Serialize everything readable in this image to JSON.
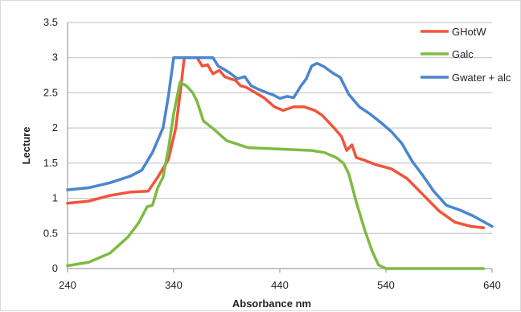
{
  "chart_data": {
    "type": "line",
    "title": "",
    "xlabel": "Absorbance nm",
    "ylabel": "Lecture",
    "xlim": [
      240,
      640
    ],
    "ylim": [
      0,
      3.5
    ],
    "x_ticks": [
      240,
      340,
      440,
      540,
      640
    ],
    "y_ticks": [
      0,
      0.5,
      1,
      1.5,
      2,
      2.5,
      3,
      3.5
    ],
    "y_tick_labels": [
      "0",
      "0.5",
      "1",
      "1.5",
      "2",
      "2.5",
      "3",
      "3.5"
    ],
    "grid": "horizontal",
    "legend_position": "top-right",
    "series": [
      {
        "name": "GHotW",
        "color": "#f0553a",
        "points": [
          [
            240,
            0.93
          ],
          [
            260,
            0.96
          ],
          [
            280,
            1.04
          ],
          [
            300,
            1.09
          ],
          [
            316,
            1.1
          ],
          [
            325,
            1.3
          ],
          [
            335,
            1.55
          ],
          [
            342,
            2.0
          ],
          [
            347,
            2.6
          ],
          [
            350,
            3.0
          ],
          [
            355,
            3.0
          ],
          [
            362,
            3.0
          ],
          [
            367,
            2.88
          ],
          [
            372,
            2.9
          ],
          [
            377,
            2.77
          ],
          [
            383,
            2.82
          ],
          [
            388,
            2.73
          ],
          [
            393,
            2.7
          ],
          [
            398,
            2.68
          ],
          [
            403,
            2.6
          ],
          [
            408,
            2.58
          ],
          [
            415,
            2.52
          ],
          [
            425,
            2.43
          ],
          [
            435,
            2.3
          ],
          [
            443,
            2.25
          ],
          [
            453,
            2.3
          ],
          [
            463,
            2.3
          ],
          [
            473,
            2.25
          ],
          [
            480,
            2.18
          ],
          [
            490,
            2.02
          ],
          [
            498,
            1.88
          ],
          [
            503,
            1.68
          ],
          [
            508,
            1.76
          ],
          [
            512,
            1.58
          ],
          [
            520,
            1.54
          ],
          [
            530,
            1.48
          ],
          [
            545,
            1.42
          ],
          [
            560,
            1.28
          ],
          [
            575,
            1.05
          ],
          [
            590,
            0.82
          ],
          [
            605,
            0.66
          ],
          [
            620,
            0.6
          ],
          [
            632,
            0.58
          ]
        ]
      },
      {
        "name": "Galc",
        "color": "#7dbb42",
        "points": [
          [
            240,
            0.04
          ],
          [
            260,
            0.09
          ],
          [
            280,
            0.22
          ],
          [
            297,
            0.45
          ],
          [
            307,
            0.65
          ],
          [
            315,
            0.88
          ],
          [
            320,
            0.9
          ],
          [
            325,
            1.15
          ],
          [
            330,
            1.3
          ],
          [
            335,
            1.7
          ],
          [
            340,
            2.2
          ],
          [
            346,
            2.65
          ],
          [
            352,
            2.6
          ],
          [
            358,
            2.5
          ],
          [
            362,
            2.38
          ],
          [
            368,
            2.1
          ],
          [
            378,
            1.98
          ],
          [
            390,
            1.82
          ],
          [
            410,
            1.72
          ],
          [
            440,
            1.7
          ],
          [
            470,
            1.68
          ],
          [
            482,
            1.65
          ],
          [
            493,
            1.58
          ],
          [
            500,
            1.5
          ],
          [
            505,
            1.35
          ],
          [
            512,
            0.95
          ],
          [
            520,
            0.55
          ],
          [
            527,
            0.25
          ],
          [
            533,
            0.05
          ],
          [
            540,
            0.0
          ],
          [
            600,
            0.0
          ],
          [
            632,
            0.0
          ]
        ]
      },
      {
        "name": "Gwater + alc",
        "color": "#4a86cf",
        "points": [
          [
            240,
            1.12
          ],
          [
            260,
            1.15
          ],
          [
            280,
            1.22
          ],
          [
            300,
            1.32
          ],
          [
            310,
            1.4
          ],
          [
            320,
            1.65
          ],
          [
            330,
            2.0
          ],
          [
            335,
            2.45
          ],
          [
            340,
            3.0
          ],
          [
            350,
            3.0
          ],
          [
            360,
            3.0
          ],
          [
            372,
            3.0
          ],
          [
            377,
            3.0
          ],
          [
            382,
            2.88
          ],
          [
            388,
            2.83
          ],
          [
            393,
            2.78
          ],
          [
            400,
            2.7
          ],
          [
            407,
            2.73
          ],
          [
            413,
            2.6
          ],
          [
            420,
            2.55
          ],
          [
            428,
            2.5
          ],
          [
            434,
            2.47
          ],
          [
            440,
            2.42
          ],
          [
            447,
            2.45
          ],
          [
            453,
            2.43
          ],
          [
            460,
            2.6
          ],
          [
            465,
            2.7
          ],
          [
            470,
            2.88
          ],
          [
            475,
            2.92
          ],
          [
            482,
            2.87
          ],
          [
            490,
            2.78
          ],
          [
            497,
            2.72
          ],
          [
            505,
            2.48
          ],
          [
            515,
            2.3
          ],
          [
            525,
            2.2
          ],
          [
            535,
            2.08
          ],
          [
            545,
            1.95
          ],
          [
            555,
            1.78
          ],
          [
            565,
            1.52
          ],
          [
            575,
            1.32
          ],
          [
            585,
            1.1
          ],
          [
            597,
            0.9
          ],
          [
            610,
            0.83
          ],
          [
            622,
            0.75
          ],
          [
            640,
            0.6
          ]
        ]
      }
    ]
  }
}
